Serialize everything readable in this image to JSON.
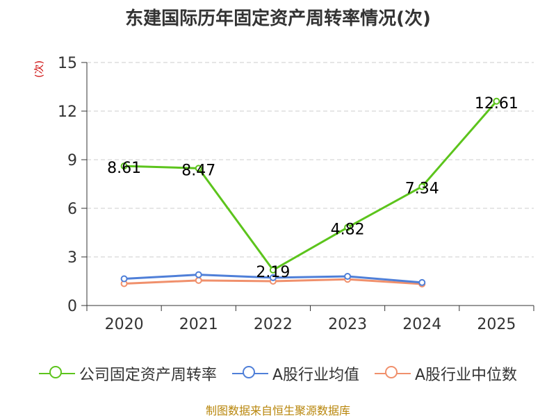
{
  "chart_data": {
    "type": "line",
    "title": "东建国际历年固定资产周转率情况(次)",
    "ylabel": "(次)",
    "categories": [
      "2020",
      "2021",
      "2022",
      "2023",
      "2024",
      "2025"
    ],
    "ylim": [
      0,
      15
    ],
    "yticks": [
      0,
      3,
      6,
      9,
      12,
      15
    ],
    "grid": true,
    "legend_position": "bottom",
    "series": [
      {
        "name": "公司固定资产周转率",
        "color": "#5cc41c",
        "values": [
          8.61,
          8.47,
          2.19,
          4.82,
          7.34,
          12.61
        ],
        "labels": [
          "8.61",
          "8.47",
          "2.19",
          "4.82",
          "7.34",
          "12.61"
        ]
      },
      {
        "name": "A股行业均值",
        "color": "#4f7fd8",
        "values": [
          1.65,
          1.9,
          1.72,
          1.8,
          1.42,
          null
        ]
      },
      {
        "name": "A股行业中位数",
        "color": "#f0906c",
        "values": [
          1.35,
          1.55,
          1.5,
          1.62,
          1.33,
          null
        ]
      }
    ]
  },
  "source": "制图数据来自恒生聚源数据库"
}
